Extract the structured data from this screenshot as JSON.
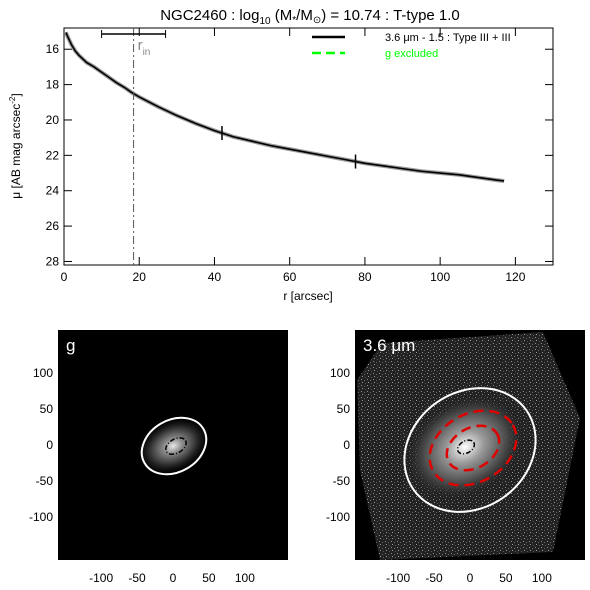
{
  "chart_data": [
    {
      "type": "line",
      "title_main": "NGC2460 : log",
      "title_sub": "10",
      "title_frac": " (M",
      "title_star": "*",
      "title_mid": "/M",
      "title_sun": "⊙",
      "title_tail": ") = 10.74 : T-type 1.0",
      "xlabel": "r [arcsec]",
      "ylabel": "μ [AB mag arcsec",
      "ylabel_sup": "-2",
      "ylabel_end": "]",
      "xlim": [
        0,
        130
      ],
      "ylim": [
        28.2,
        14.8
      ],
      "xticks": [
        "0",
        "20",
        "40",
        "60",
        "80",
        "100",
        "120"
      ],
      "xtick_values": [
        0,
        20,
        40,
        60,
        80,
        100,
        120
      ],
      "yticks": [
        "16",
        "18",
        "20",
        "22",
        "24",
        "26",
        "28"
      ],
      "ytick_values": [
        16,
        18,
        20,
        22,
        24,
        26,
        28
      ],
      "legend_position": "top-right",
      "legend": [
        {
          "label": "3.6 μm - 1.5 : Type III + III",
          "color": "#000000",
          "style": "solid"
        },
        {
          "label": "g excluded",
          "color": "#00ff00",
          "style": "dashed"
        }
      ],
      "r_in": {
        "label": "r",
        "sub": "in",
        "x": 18.5,
        "x_range": [
          10,
          27
        ]
      },
      "break_marks": [
        42,
        77.5
      ],
      "series": [
        {
          "x": [
            0.5,
            1,
            2,
            3,
            4,
            5,
            6,
            8,
            10,
            12,
            14,
            16,
            18,
            20,
            25,
            30,
            35,
            40,
            45,
            50,
            55,
            60,
            65,
            70,
            75,
            80,
            85,
            90,
            95,
            100,
            105,
            110,
            115,
            117
          ],
          "values": [
            15.05,
            15.3,
            15.75,
            16.1,
            16.35,
            16.55,
            16.75,
            17.0,
            17.3,
            17.6,
            17.9,
            18.15,
            18.45,
            18.7,
            19.25,
            19.75,
            20.2,
            20.6,
            20.95,
            21.2,
            21.45,
            21.65,
            21.85,
            22.05,
            22.25,
            22.45,
            22.6,
            22.75,
            22.9,
            23.0,
            23.1,
            23.25,
            23.4,
            23.45
          ],
          "color": "#000000"
        }
      ]
    },
    {
      "type": "heatmap",
      "band_label": "g",
      "xticks": [
        "-100",
        "-50",
        "0",
        "50",
        "100"
      ],
      "xtick_values": [
        -100,
        -50,
        0,
        50,
        100
      ],
      "yticks": [
        "100",
        "50",
        "0",
        "-50",
        "-100"
      ],
      "ytick_values": [
        100,
        50,
        0,
        -50,
        -100
      ],
      "xlim": [
        -160,
        160
      ],
      "ylim": [
        -160,
        160
      ]
    },
    {
      "type": "heatmap",
      "band_label": "3.6 μm",
      "xticks": [
        "-100",
        "-50",
        "0",
        "50",
        "100"
      ],
      "xtick_values": [
        -100,
        -50,
        0,
        50,
        100
      ],
      "yticks": [
        "100",
        "50",
        "0",
        "-50",
        "-100"
      ],
      "ytick_values": [
        100,
        50,
        0,
        -50,
        -100
      ],
      "xlim": [
        -160,
        160
      ],
      "ylim": [
        -160,
        160
      ]
    }
  ]
}
